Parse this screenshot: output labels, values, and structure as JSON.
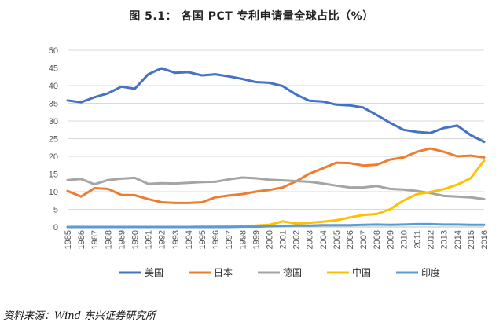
{
  "chart_data": {
    "type": "line",
    "title": "图 5.1：  各国 PCT 专利申请量全球占比（%）",
    "xlabel": "",
    "ylabel": "",
    "ylim": [
      0,
      50
    ],
    "yticks": [
      0,
      5,
      10,
      15,
      20,
      25,
      30,
      35,
      40,
      45,
      50
    ],
    "x": [
      "1985",
      "1986",
      "1987",
      "1988",
      "1989",
      "1990",
      "1991",
      "1992",
      "1993",
      "1994",
      "1995",
      "1996",
      "1997",
      "1998",
      "1999",
      "2000",
      "2001",
      "2002",
      "2003",
      "2004",
      "2005",
      "2006",
      "2007",
      "2008",
      "2009",
      "2010",
      "2011",
      "2012",
      "2013",
      "2014",
      "2015",
      "2016"
    ],
    "grid": true,
    "legend_position": "bottom",
    "series": [
      {
        "name": "美国",
        "color": "#4472C4",
        "values": [
          35.8,
          35.3,
          36.7,
          37.8,
          39.7,
          39.1,
          43.2,
          44.9,
          43.6,
          43.8,
          42.9,
          43.2,
          42.6,
          41.9,
          41.0,
          40.8,
          39.9,
          37.5,
          35.7,
          35.5,
          34.6,
          34.4,
          33.8,
          31.7,
          29.5,
          27.5,
          26.9,
          26.6,
          28.0,
          28.7,
          26.0,
          24.1
        ]
      },
      {
        "name": "日本",
        "color": "#ED7D31",
        "values": [
          10.2,
          8.6,
          11.0,
          10.8,
          9.1,
          9.0,
          7.9,
          7.0,
          6.8,
          6.8,
          7.0,
          8.4,
          8.9,
          9.3,
          10.0,
          10.5,
          11.2,
          12.9,
          15.1,
          16.6,
          18.2,
          18.1,
          17.4,
          17.6,
          19.1,
          19.7,
          21.3,
          22.2,
          21.3,
          20.0,
          20.2,
          19.7
        ]
      },
      {
        "name": "德国",
        "color": "#A5A5A5",
        "values": [
          13.3,
          13.6,
          12.1,
          13.3,
          13.7,
          13.9,
          12.2,
          12.4,
          12.3,
          12.5,
          12.7,
          12.8,
          13.5,
          14.0,
          13.8,
          13.4,
          13.2,
          13.0,
          12.8,
          12.3,
          11.7,
          11.2,
          11.2,
          11.6,
          10.8,
          10.6,
          10.2,
          9.6,
          8.8,
          8.6,
          8.4,
          7.9
        ]
      },
      {
        "name": "中国",
        "color": "#FFC000",
        "values": [
          0.0,
          0.0,
          0.0,
          0.0,
          0.0,
          0.0,
          0.0,
          0.0,
          0.0,
          0.0,
          0.1,
          0.1,
          0.2,
          0.3,
          0.4,
          0.6,
          1.6,
          1.0,
          1.2,
          1.5,
          1.9,
          2.7,
          3.4,
          3.7,
          5.0,
          7.5,
          9.3,
          9.9,
          10.7,
          12.0,
          13.8,
          18.8
        ]
      },
      {
        "name": "印度",
        "color": "#5B9BD5",
        "values": [
          0.0,
          0.0,
          0.0,
          0.0,
          0.0,
          0.0,
          0.0,
          0.0,
          0.0,
          0.0,
          0.0,
          0.0,
          0.0,
          0.1,
          0.1,
          0.2,
          0.3,
          0.4,
          0.4,
          0.5,
          0.5,
          0.5,
          0.6,
          0.7,
          0.6,
          0.7,
          0.8,
          0.8,
          0.7,
          0.7,
          0.6,
          0.6
        ]
      }
    ]
  },
  "source": "资料来源：Wind  东兴证券研究所"
}
